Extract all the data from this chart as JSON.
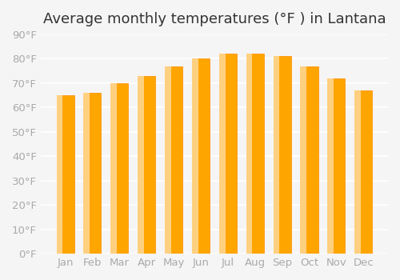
{
  "title": "Average monthly temperatures (°F ) in Lantana",
  "months": [
    "Jan",
    "Feb",
    "Mar",
    "Apr",
    "May",
    "Jun",
    "Jul",
    "Aug",
    "Sep",
    "Oct",
    "Nov",
    "Dec"
  ],
  "values": [
    65,
    66,
    70,
    73,
    77,
    80,
    82,
    82,
    81,
    77,
    72,
    67
  ],
  "bar_color_face": "#FFA500",
  "bar_color_edge": "#FF8C00",
  "ylim": [
    0,
    90
  ],
  "yticks": [
    0,
    10,
    20,
    30,
    40,
    50,
    60,
    70,
    80,
    90
  ],
  "background_color": "#f5f5f5",
  "grid_color": "#ffffff",
  "title_fontsize": 13,
  "tick_fontsize": 9.5,
  "bar_width": 0.65
}
